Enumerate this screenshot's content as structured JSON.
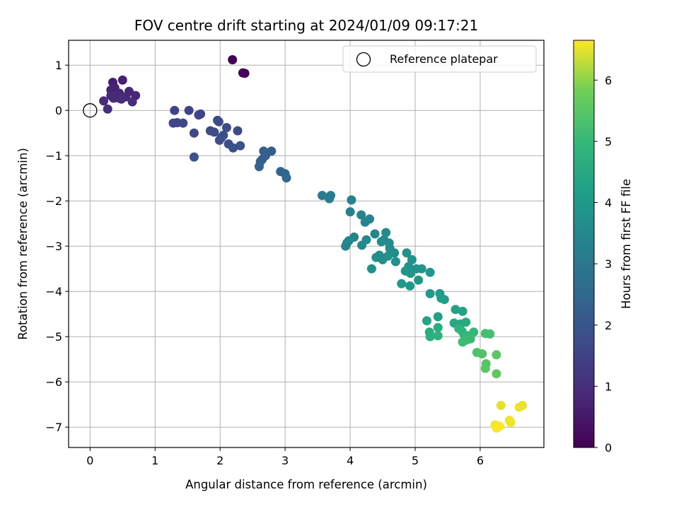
{
  "chart_data": {
    "type": "scatter",
    "title": "FOV centre drift starting at 2024/01/09 09:17:21",
    "xlabel": "Angular distance from reference (arcmin)",
    "ylabel": "Rotation from reference (arcmin)",
    "xlim": [
      -0.33,
      6.98
    ],
    "ylim": [
      -7.45,
      1.55
    ],
    "xticks": [
      0,
      1,
      2,
      3,
      4,
      5,
      6
    ],
    "yticks": [
      1,
      0,
      -1,
      -2,
      -3,
      -4,
      -5,
      -6,
      -7
    ],
    "grid": true,
    "legend": {
      "placement": "top-right",
      "entries": [
        "Reference platepar"
      ]
    },
    "reference_point": {
      "x": 0,
      "y": 0,
      "label": "Reference platepar"
    },
    "colorbar": {
      "label": "Hours from first FF file",
      "colormap": "viridis",
      "range": [
        0,
        6.65
      ],
      "ticks": [
        0,
        1,
        2,
        3,
        4,
        5,
        6
      ]
    },
    "points": [
      [
        2.19,
        1.12,
        0.0
      ],
      [
        2.35,
        0.83,
        0.05
      ],
      [
        2.38,
        0.82,
        0.1
      ],
      [
        0.35,
        0.62,
        0.65
      ],
      [
        0.5,
        0.67,
        0.7
      ],
      [
        0.38,
        0.5,
        0.72
      ],
      [
        0.32,
        0.45,
        0.75
      ],
      [
        0.6,
        0.42,
        0.78
      ],
      [
        0.45,
        0.38,
        0.8
      ],
      [
        0.7,
        0.33,
        0.82
      ],
      [
        0.55,
        0.3,
        0.84
      ],
      [
        0.32,
        0.33,
        0.86
      ],
      [
        0.42,
        0.28,
        0.88
      ],
      [
        0.36,
        0.27,
        0.9
      ],
      [
        0.48,
        0.25,
        0.92
      ],
      [
        0.21,
        0.21,
        0.95
      ],
      [
        0.65,
        0.19,
        0.97
      ],
      [
        0.27,
        0.03,
        1.0
      ],
      [
        1.3,
        0.0,
        1.5
      ],
      [
        1.52,
        0.0,
        1.52
      ],
      [
        1.7,
        -0.08,
        1.55
      ],
      [
        1.67,
        -0.1,
        1.57
      ],
      [
        1.43,
        -0.28,
        1.6
      ],
      [
        1.28,
        -0.28,
        1.62
      ],
      [
        1.34,
        -0.27,
        1.64
      ],
      [
        1.6,
        -0.5,
        1.66
      ],
      [
        1.85,
        -0.45,
        1.68
      ],
      [
        1.96,
        -0.22,
        1.7
      ],
      [
        1.98,
        -0.25,
        1.72
      ],
      [
        2.27,
        -0.45,
        1.74
      ],
      [
        2.1,
        -0.38,
        1.76
      ],
      [
        1.91,
        -0.48,
        1.78
      ],
      [
        2.05,
        -0.55,
        1.8
      ],
      [
        1.99,
        -0.66,
        1.82
      ],
      [
        2.02,
        -0.6,
        1.84
      ],
      [
        2.13,
        -0.74,
        1.86
      ],
      [
        2.31,
        -0.78,
        1.88
      ],
      [
        2.2,
        -0.83,
        1.9
      ],
      [
        1.6,
        -1.03,
        1.92
      ],
      [
        2.67,
        -0.9,
        2.2
      ],
      [
        2.79,
        -0.9,
        2.22
      ],
      [
        2.7,
        -1.0,
        2.24
      ],
      [
        2.65,
        -1.08,
        2.26
      ],
      [
        2.62,
        -1.13,
        2.28
      ],
      [
        2.6,
        -1.24,
        2.3
      ],
      [
        2.93,
        -1.35,
        2.45
      ],
      [
        3.0,
        -1.4,
        2.47
      ],
      [
        3.02,
        -1.49,
        2.49
      ],
      [
        3.57,
        -1.88,
        3.1
      ],
      [
        3.7,
        -1.88,
        3.12
      ],
      [
        3.68,
        -1.95,
        3.14
      ],
      [
        4.02,
        -1.98,
        3.3
      ],
      [
        4.0,
        -2.24,
        3.32
      ],
      [
        4.17,
        -2.31,
        3.34
      ],
      [
        4.3,
        -2.4,
        3.36
      ],
      [
        4.23,
        -2.47,
        3.38
      ],
      [
        4.38,
        -2.73,
        3.4
      ],
      [
        4.06,
        -2.8,
        3.42
      ],
      [
        3.98,
        -2.88,
        3.44
      ],
      [
        3.93,
        -3.0,
        3.46
      ],
      [
        3.95,
        -2.93,
        3.48
      ],
      [
        4.25,
        -2.86,
        3.5
      ],
      [
        4.18,
        -2.98,
        3.52
      ],
      [
        4.55,
        -2.7,
        3.55
      ],
      [
        4.52,
        -2.86,
        3.57
      ],
      [
        4.6,
        -2.93,
        3.59
      ],
      [
        4.48,
        -2.9,
        3.61
      ],
      [
        4.61,
        -3.05,
        3.63
      ],
      [
        4.68,
        -3.15,
        3.65
      ],
      [
        4.4,
        -3.25,
        3.67
      ],
      [
        4.45,
        -3.2,
        3.69
      ],
      [
        4.5,
        -3.3,
        3.71
      ],
      [
        4.58,
        -3.22,
        3.73
      ],
      [
        4.7,
        -3.34,
        3.75
      ],
      [
        4.33,
        -3.5,
        3.77
      ],
      [
        4.87,
        -3.15,
        3.8
      ],
      [
        4.95,
        -3.3,
        3.82
      ],
      [
        4.9,
        -3.45,
        3.84
      ],
      [
        4.85,
        -3.55,
        3.86
      ],
      [
        5.02,
        -3.5,
        3.88
      ],
      [
        5.1,
        -3.5,
        3.9
      ],
      [
        5.23,
        -3.58,
        3.92
      ],
      [
        4.93,
        -3.6,
        3.94
      ],
      [
        5.05,
        -3.75,
        3.96
      ],
      [
        4.79,
        -3.83,
        3.98
      ],
      [
        4.92,
        -3.88,
        4.0
      ],
      [
        5.23,
        -4.05,
        4.05
      ],
      [
        5.38,
        -4.05,
        4.1
      ],
      [
        5.4,
        -4.15,
        4.15
      ],
      [
        5.45,
        -4.18,
        4.2
      ],
      [
        5.35,
        -4.56,
        4.25
      ],
      [
        5.62,
        -4.4,
        4.3
      ],
      [
        5.73,
        -4.44,
        4.35
      ],
      [
        5.18,
        -4.65,
        4.4
      ],
      [
        5.6,
        -4.7,
        4.45
      ],
      [
        5.7,
        -4.72,
        4.5
      ],
      [
        5.78,
        -4.68,
        4.55
      ],
      [
        5.35,
        -4.8,
        4.6
      ],
      [
        5.22,
        -4.9,
        4.65
      ],
      [
        5.23,
        -5.0,
        4.7
      ],
      [
        5.35,
        -4.98,
        4.75
      ],
      [
        5.67,
        -4.82,
        4.8
      ],
      [
        5.72,
        -4.88,
        4.85
      ],
      [
        5.75,
        -4.95,
        4.9
      ],
      [
        5.8,
        -4.98,
        4.95
      ],
      [
        5.9,
        -4.9,
        5.0
      ],
      [
        5.85,
        -5.05,
        5.05
      ],
      [
        5.78,
        -5.08,
        5.1
      ],
      [
        5.73,
        -5.12,
        5.15
      ],
      [
        6.08,
        -4.93,
        5.2
      ],
      [
        6.15,
        -4.94,
        5.25
      ],
      [
        5.95,
        -5.35,
        5.35
      ],
      [
        6.03,
        -5.38,
        5.4
      ],
      [
        6.09,
        -5.6,
        5.45
      ],
      [
        6.08,
        -5.7,
        5.5
      ],
      [
        6.25,
        -5.4,
        5.55
      ],
      [
        6.25,
        -5.82,
        5.6
      ],
      [
        6.32,
        -6.52,
        6.5
      ],
      [
        6.65,
        -6.52,
        6.52
      ],
      [
        6.6,
        -6.56,
        6.54
      ],
      [
        6.45,
        -6.85,
        6.56
      ],
      [
        6.47,
        -6.9,
        6.58
      ],
      [
        6.23,
        -6.95,
        6.6
      ],
      [
        6.3,
        -6.98,
        6.62
      ],
      [
        6.25,
        -7.02,
        6.64
      ]
    ]
  }
}
